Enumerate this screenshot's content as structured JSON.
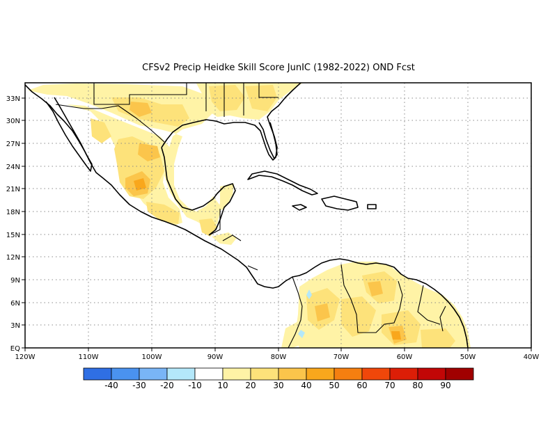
{
  "title": "CFSv2 Precip Heidke Skill Score JunIC (1982-2022) OND Fcst",
  "map": {
    "lon_range": [
      -120,
      -40
    ],
    "lat_range": [
      0,
      35
    ],
    "x_ticks": [
      "120W",
      "110W",
      "100W",
      "90W",
      "80W",
      "70W",
      "60W",
      "50W",
      "40W"
    ],
    "y_ticks": [
      "EQ",
      "3N",
      "6N",
      "9N",
      "12N",
      "15N",
      "18N",
      "21N",
      "24N",
      "27N",
      "30N",
      "33N"
    ],
    "grid": "dotted"
  },
  "colorbar": {
    "colors": [
      "#2f6fe4",
      "#4a92ef",
      "#79b5f6",
      "#b4e8fa",
      "#ffffff",
      "#fff3a6",
      "#fde27a",
      "#fbc54b",
      "#f9a71c",
      "#f57f10",
      "#f0470a",
      "#dc1e07",
      "#c20606",
      "#a00000"
    ],
    "labels": [
      "-40",
      "-30",
      "-20",
      "-10",
      "10",
      "20",
      "30",
      "40",
      "50",
      "60",
      "70",
      "80",
      "90"
    ]
  }
}
